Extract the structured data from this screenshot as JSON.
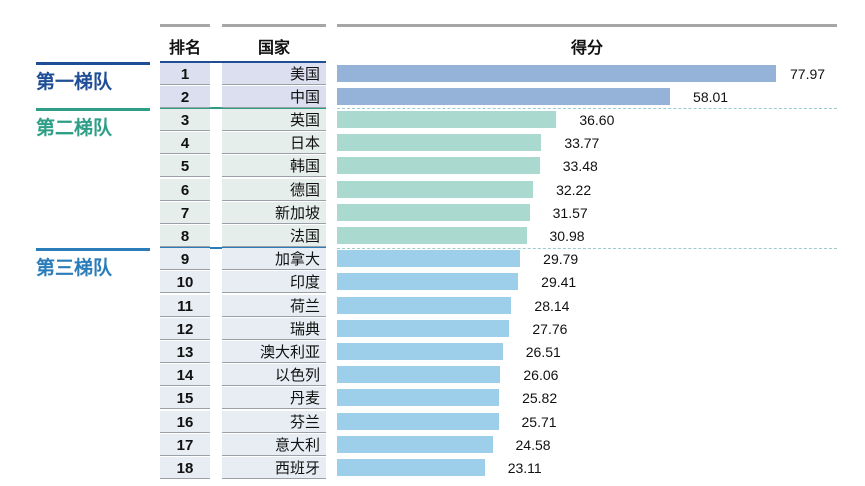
{
  "chart_data": {
    "type": "bar",
    "orientation": "horizontal",
    "columns": {
      "rank": "排名",
      "country": "国家",
      "score": "得分"
    },
    "tiers": [
      {
        "label": "第一梯队",
        "color": "#1f4e96",
        "bar_color": "#95b3d9",
        "cell_color": "#dcdff0",
        "ranks": [
          1,
          2
        ]
      },
      {
        "label": "第二梯队",
        "color": "#2e9e86",
        "bar_color": "#a9d9cf",
        "cell_color": "#e5eeeb",
        "ranks": [
          3,
          8
        ]
      },
      {
        "label": "第三梯队",
        "color": "#2a7db8",
        "bar_color": "#9dcfea",
        "cell_color": "#e7edf3",
        "ranks": [
          9,
          18
        ]
      }
    ],
    "rows": [
      {
        "rank": "1",
        "country": "美国",
        "score": 77.97
      },
      {
        "rank": "2",
        "country": "中国",
        "score": 58.01
      },
      {
        "rank": "3",
        "country": "英国",
        "score": 36.6
      },
      {
        "rank": "4",
        "country": "日本",
        "score": 33.77
      },
      {
        "rank": "5",
        "country": "韩国",
        "score": 33.48
      },
      {
        "rank": "6",
        "country": "德国",
        "score": 32.22
      },
      {
        "rank": "7",
        "country": "新加坡",
        "score": 31.57
      },
      {
        "rank": "8",
        "country": "法国",
        "score": 30.98
      },
      {
        "rank": "9",
        "country": "加拿大",
        "score": 29.79
      },
      {
        "rank": "10",
        "country": "印度",
        "score": 29.41
      },
      {
        "rank": "11",
        "country": "荷兰",
        "score": 28.14
      },
      {
        "rank": "12",
        "country": "瑞典",
        "score": 27.76
      },
      {
        "rank": "13",
        "country": "澳大利亚",
        "score": 26.51
      },
      {
        "rank": "14",
        "country": "以色列",
        "score": 26.06
      },
      {
        "rank": "15",
        "country": "丹麦",
        "score": 25.82
      },
      {
        "rank": "16",
        "country": "芬兰",
        "score": 25.71
      },
      {
        "rank": "17",
        "country": "意大利",
        "score": 24.58
      },
      {
        "rank": "18",
        "country": "西班牙",
        "score": 23.11
      }
    ]
  }
}
